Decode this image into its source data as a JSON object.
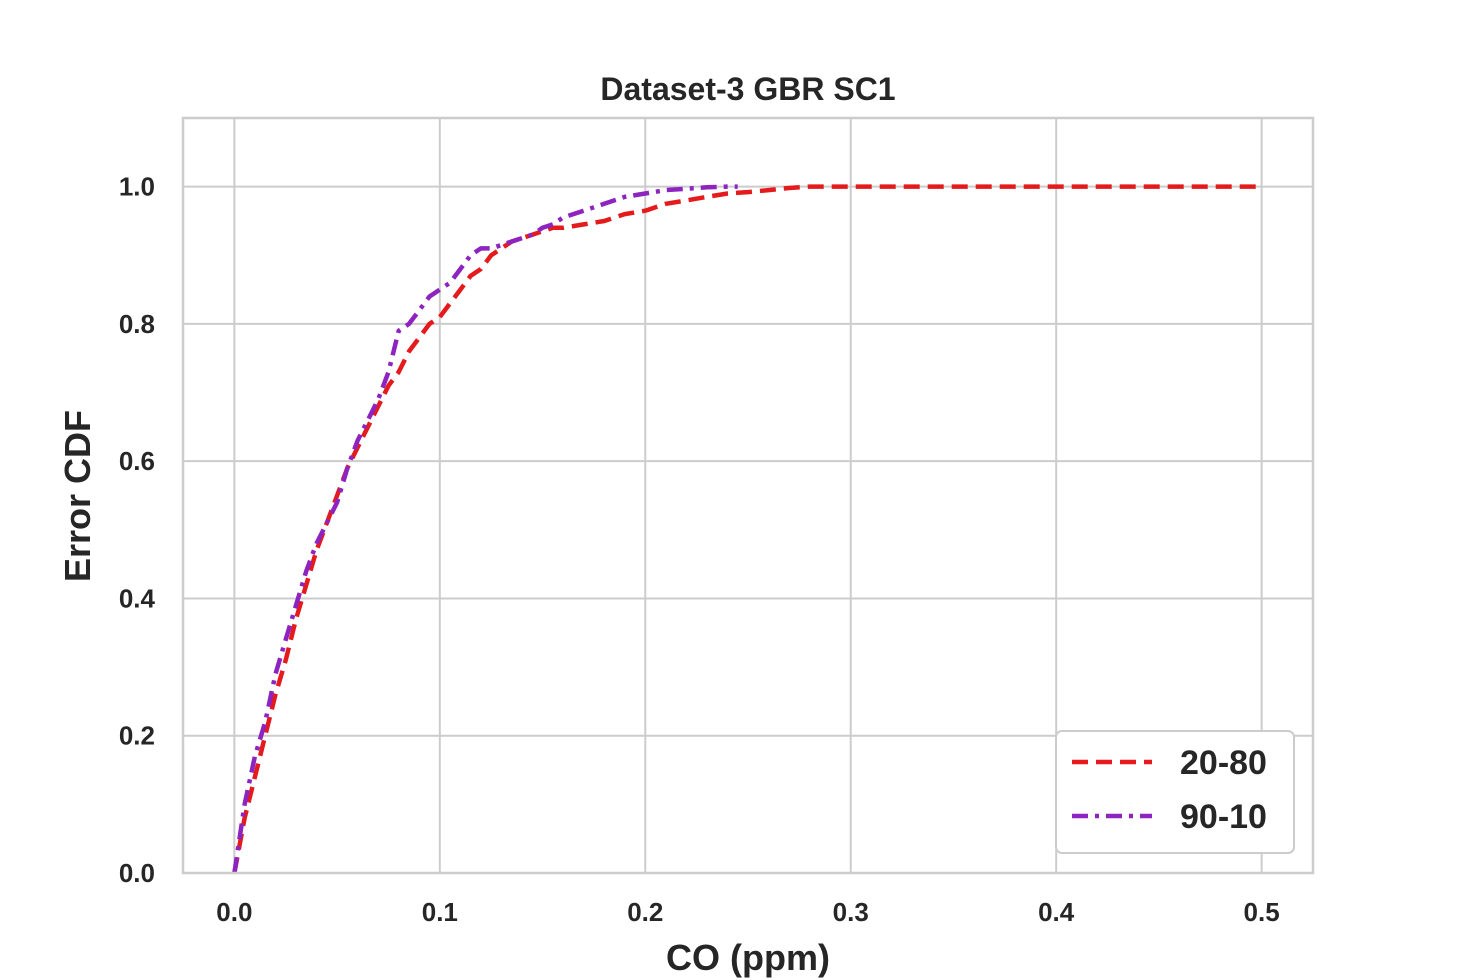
{
  "chart_data": {
    "type": "line",
    "title": "Dataset-3 GBR SC1",
    "xlabel": "CO (ppm)",
    "ylabel": "Error CDF",
    "xlim": [
      -0.025,
      0.525
    ],
    "ylim": [
      0.0,
      1.1
    ],
    "xticks": [
      0.0,
      0.1,
      0.2,
      0.3,
      0.4,
      0.5
    ],
    "xtick_labels": [
      "0.0",
      "0.1",
      "0.2",
      "0.3",
      "0.4",
      "0.5"
    ],
    "yticks": [
      0.0,
      0.2,
      0.4,
      0.6,
      0.8,
      1.0
    ],
    "ytick_labels": [
      "0.0",
      "0.2",
      "0.4",
      "0.6",
      "0.8",
      "1.0"
    ],
    "grid": true,
    "legend_position": "bottom-right",
    "series": [
      {
        "name": "20-80",
        "color": "#e41a1c",
        "dash": "dashed",
        "x": [
          0.0,
          0.005,
          0.01,
          0.015,
          0.02,
          0.025,
          0.03,
          0.035,
          0.04,
          0.045,
          0.05,
          0.055,
          0.06,
          0.065,
          0.07,
          0.075,
          0.08,
          0.085,
          0.09,
          0.095,
          0.1,
          0.105,
          0.11,
          0.115,
          0.12,
          0.125,
          0.13,
          0.135,
          0.14,
          0.145,
          0.15,
          0.155,
          0.16,
          0.17,
          0.18,
          0.19,
          0.2,
          0.21,
          0.22,
          0.23,
          0.24,
          0.25,
          0.26,
          0.27,
          0.28,
          0.3,
          0.35,
          0.4,
          0.45,
          0.5
        ],
        "y": [
          0.0,
          0.08,
          0.14,
          0.2,
          0.26,
          0.31,
          0.37,
          0.42,
          0.47,
          0.51,
          0.55,
          0.59,
          0.62,
          0.65,
          0.68,
          0.71,
          0.73,
          0.76,
          0.78,
          0.8,
          0.81,
          0.83,
          0.85,
          0.87,
          0.88,
          0.9,
          0.91,
          0.92,
          0.925,
          0.93,
          0.935,
          0.94,
          0.94,
          0.945,
          0.95,
          0.96,
          0.965,
          0.975,
          0.98,
          0.985,
          0.99,
          0.992,
          0.995,
          0.998,
          1.0,
          1.0,
          1.0,
          1.0,
          1.0,
          1.0
        ]
      },
      {
        "name": "90-10",
        "color": "#8e24c0",
        "dash": "dashdot",
        "x": [
          0.0,
          0.005,
          0.01,
          0.015,
          0.02,
          0.025,
          0.03,
          0.035,
          0.04,
          0.045,
          0.05,
          0.055,
          0.06,
          0.065,
          0.07,
          0.075,
          0.08,
          0.085,
          0.09,
          0.095,
          0.1,
          0.105,
          0.11,
          0.115,
          0.12,
          0.125,
          0.13,
          0.135,
          0.14,
          0.145,
          0.15,
          0.155,
          0.16,
          0.17,
          0.18,
          0.19,
          0.2,
          0.21,
          0.22,
          0.23,
          0.24,
          0.245
        ],
        "y": [
          0.0,
          0.1,
          0.17,
          0.22,
          0.29,
          0.34,
          0.39,
          0.44,
          0.48,
          0.51,
          0.54,
          0.59,
          0.63,
          0.66,
          0.69,
          0.73,
          0.79,
          0.8,
          0.82,
          0.84,
          0.85,
          0.86,
          0.88,
          0.9,
          0.91,
          0.91,
          0.915,
          0.92,
          0.925,
          0.93,
          0.94,
          0.945,
          0.955,
          0.965,
          0.975,
          0.985,
          0.99,
          0.995,
          0.997,
          0.999,
          1.0,
          1.0
        ]
      }
    ]
  }
}
